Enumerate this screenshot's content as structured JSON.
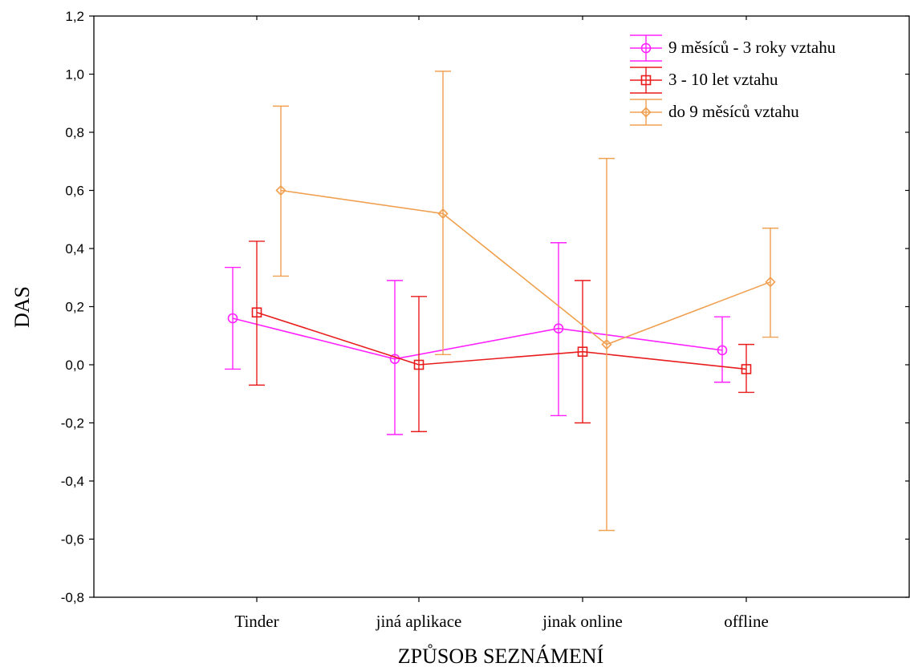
{
  "chart_data": {
    "type": "line",
    "xlabel": "ZPŮSOB SEZNÁMENÍ",
    "ylabel": "DAS",
    "categories": [
      "Tinder",
      "jiná aplikace",
      "jinak online",
      "offline"
    ],
    "ylim": [
      -0.8,
      1.2
    ],
    "yticks": [
      -0.8,
      -0.6,
      -0.4,
      -0.2,
      0.0,
      0.2,
      0.4,
      0.6,
      0.8,
      1.0,
      1.2
    ],
    "ytick_labels": [
      "-0,8",
      "-0,6",
      "-0,4",
      "-0,2",
      "0,0",
      "0,2",
      "0,4",
      "0,6",
      "0,8",
      "1,0",
      "1,2"
    ],
    "grid": false,
    "legend_position": "top-right",
    "series": [
      {
        "name": "9 měsíců - 3 roky vztahu",
        "color": "#ff22ff",
        "marker": "circle",
        "values": [
          0.16,
          0.02,
          0.125,
          0.05
        ],
        "lower": [
          -0.015,
          -0.24,
          -0.175,
          -0.06
        ],
        "upper": [
          0.335,
          0.29,
          0.42,
          0.165
        ]
      },
      {
        "name": "3 - 10 let vztahu",
        "color": "#e81c1c",
        "marker": "square",
        "values": [
          0.18,
          0.0,
          0.045,
          -0.015
        ],
        "lower": [
          -0.07,
          -0.23,
          -0.2,
          -0.095
        ],
        "upper": [
          0.425,
          0.235,
          0.29,
          0.07
        ]
      },
      {
        "name": "do 9 měsíců vztahu",
        "color": "#f0a050",
        "marker": "diamond",
        "values": [
          0.6,
          0.52,
          0.07,
          0.285
        ],
        "lower": [
          0.305,
          0.035,
          -0.57,
          0.095
        ],
        "upper": [
          0.89,
          1.01,
          0.71,
          0.47
        ]
      }
    ]
  }
}
